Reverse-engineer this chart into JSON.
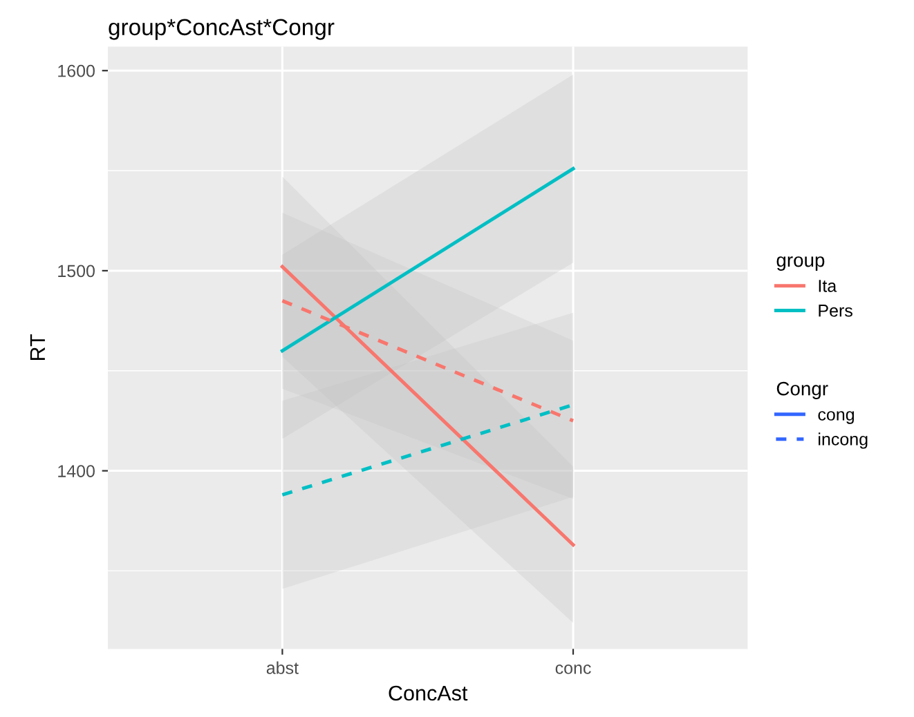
{
  "chart_data": {
    "type": "line",
    "title": "group*ConcAst*Congr",
    "xlabel": "ConcAst",
    "ylabel": "RT",
    "legend_title": "group",
    "categories": [
      "abst",
      "conc"
    ],
    "series": [
      {
        "name": "Ita",
        "color": "#f8766d",
        "line_style": "solid",
        "values": [
          1502,
          1363
        ],
        "lower": [
          1457,
          1324
        ],
        "upper": [
          1547,
          1402
        ]
      },
      {
        "name": "Pers",
        "color": "#00bfc4",
        "line_style": "solid",
        "values": [
          1460,
          1551
        ],
        "lower": [
          1416,
          1504
        ],
        "upper": [
          1508,
          1598
        ]
      },
      {
        "color": "#f8766d",
        "line_style": "dashed",
        "values": [
          1485,
          1425
        ],
        "lower": [
          1441,
          1386
        ],
        "upper": [
          1529,
          1465
        ]
      },
      {
        "color": "#00bfc4",
        "line_style": "dashed",
        "values": [
          1388,
          1433
        ],
        "lower": [
          1341,
          1387
        ],
        "upper": [
          1435,
          1479
        ]
      }
    ],
    "annotations": [
      "Congr",
      "cong",
      "incong"
    ],
    "ylim": [
      1311,
      1612
    ],
    "yticks": [
      1400,
      1500,
      1600
    ],
    "grid": true,
    "legend": "right"
  }
}
